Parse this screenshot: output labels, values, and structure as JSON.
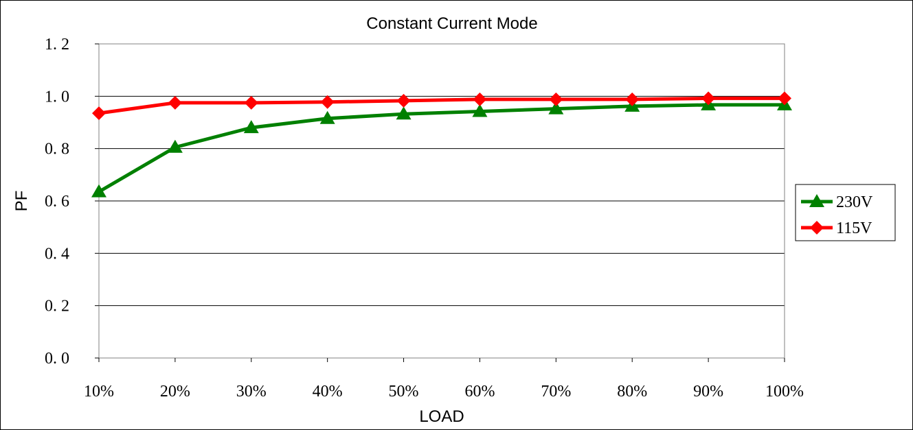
{
  "chart_data": {
    "type": "line",
    "title": "Constant Current Mode",
    "xlabel": "LOAD",
    "ylabel": "PF",
    "categories": [
      "10%",
      "20%",
      "30%",
      "40%",
      "50%",
      "60%",
      "70%",
      "80%",
      "90%",
      "100%"
    ],
    "ylim": [
      0,
      1.2
    ],
    "yticks": [
      "0. 0",
      "0. 2",
      "0. 4",
      "0. 6",
      "0. 8",
      "1. 0",
      "1. 2"
    ],
    "grid": true,
    "legend_position": "right",
    "series": [
      {
        "name": "230V",
        "color": "#008000",
        "marker": "triangle",
        "values": [
          0.635,
          0.805,
          0.88,
          0.915,
          0.932,
          0.942,
          0.952,
          0.962,
          0.967,
          0.967
        ]
      },
      {
        "name": "115V",
        "color": "#ff0000",
        "marker": "diamond",
        "values": [
          0.935,
          0.975,
          0.975,
          0.978,
          0.983,
          0.988,
          0.988,
          0.988,
          0.992,
          0.992
        ]
      }
    ]
  }
}
